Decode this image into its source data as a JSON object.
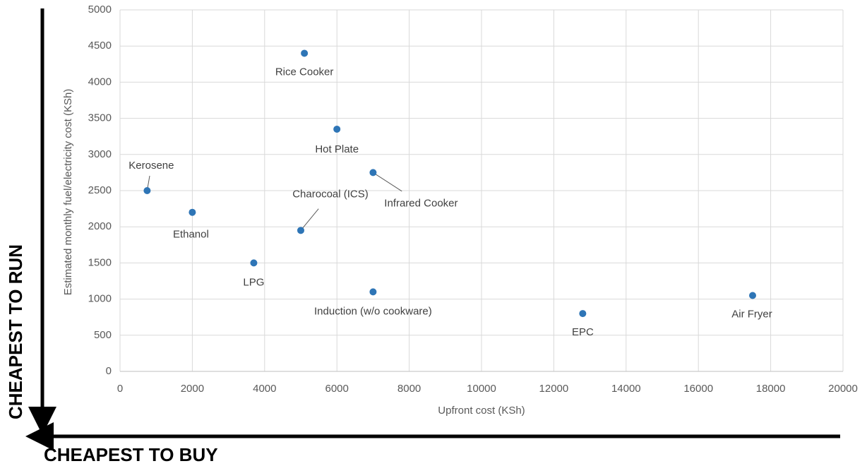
{
  "chart_data": {
    "type": "scatter",
    "xlabel": "Upfront cost (KSh)",
    "ylabel": "Estimated monthly fuel/electricity cost (KSh)",
    "labels": [
      "Rice Cooker",
      "Hot Plate",
      "Kerosene",
      "Ethanol",
      "Charocoal (ICS)",
      "Infrared Cooker",
      "LPG",
      "Induction (w/o cookware)",
      "EPC",
      "Air Fryer"
    ],
    "x": [
      5100,
      6000,
      750,
      2000,
      5000,
      7000,
      3700,
      7000,
      12800,
      17500
    ],
    "values": [
      4400,
      3350,
      2500,
      2200,
      1950,
      2750,
      1500,
      1100,
      800,
      1050
    ],
    "color": "#2e75b6",
    "xlim": [
      0,
      20000
    ],
    "xticks": [
      0,
      2000,
      4000,
      6000,
      8000,
      10000,
      12000,
      14000,
      16000,
      18000,
      20000
    ],
    "ylim": [
      0,
      5000
    ],
    "yticks": [
      0,
      500,
      1000,
      1500,
      2000,
      2500,
      3000,
      3500,
      4000,
      4500,
      5000
    ],
    "grid": true,
    "annotations": [
      "CHEAPEST TO RUN",
      "CHEAPEST TO BUY"
    ]
  }
}
